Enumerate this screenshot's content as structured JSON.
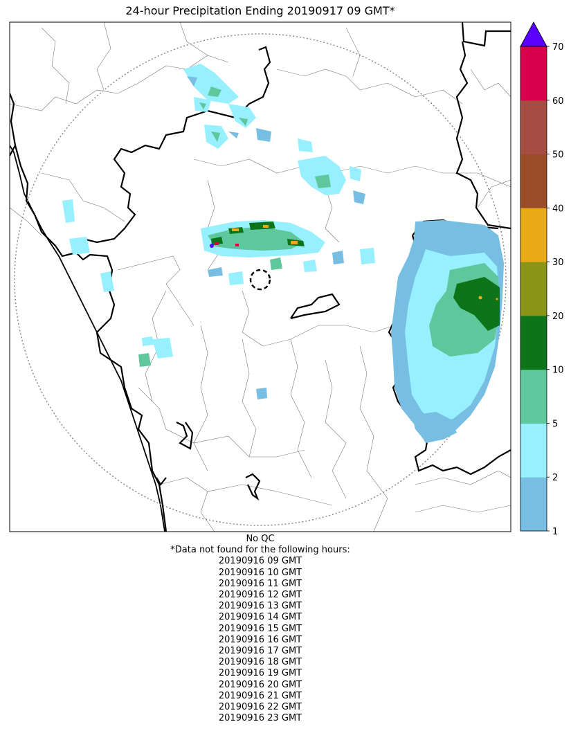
{
  "title": "24-hour Precipitation Ending 20190917 09 GMT*",
  "footer": {
    "qc_note": "No QC",
    "missing_note": "*Data not found for the following hours:",
    "missing_hours": [
      "20190916 09 GMT",
      "20190916 10 GMT",
      "20190916 11 GMT",
      "20190916 12 GMT",
      "20190916 13 GMT",
      "20190916 14 GMT",
      "20190916 15 GMT",
      "20190916 16 GMT",
      "20190916 17 GMT",
      "20190916 18 GMT",
      "20190916 19 GMT",
      "20190916 20 GMT",
      "20190916 21 GMT",
      "20190916 22 GMT",
      "20190916 23 GMT"
    ]
  },
  "colorbar": {
    "levels": [
      "1",
      "2",
      "5",
      "10",
      "20",
      "30",
      "40",
      "50",
      "60",
      "70"
    ],
    "colors": [
      "#78bee3",
      "#96f0ff",
      "#5ec79b",
      "#0d741a",
      "#8b9417",
      "#e8aa17",
      "#9b4d27",
      "#a54c43",
      "#d8004a"
    ],
    "extend_color": "#5a00ff"
  },
  "palette": {
    "c1": "#78bee3",
    "c2": "#96f0ff",
    "c5": "#5ec79b",
    "c10": "#0d741a",
    "c20": "#8b9417",
    "c30": "#e8aa17",
    "c40": "#9b4d27",
    "c60": "#d8004a",
    "c70": "#5a00ff"
  }
}
